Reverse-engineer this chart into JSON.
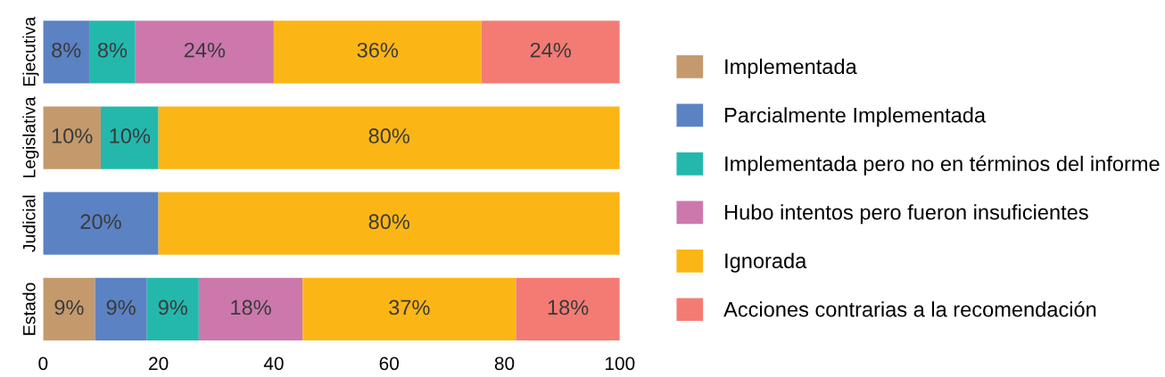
{
  "chart_data": {
    "type": "bar",
    "orientation": "horizontal",
    "stacked": true,
    "categories": [
      "Ejecutiva",
      "Legislativa",
      "Judicial",
      "Estado"
    ],
    "series": [
      {
        "name": "Implementada",
        "color": "#c49a6c",
        "values": [
          null,
          10,
          null,
          9
        ],
        "value_labels": [
          null,
          "10%",
          null,
          "9%"
        ]
      },
      {
        "name": "Parcialmente Implementada",
        "color": "#5b82c3",
        "values": [
          8,
          null,
          20,
          9
        ],
        "value_labels": [
          "8%",
          null,
          "20%",
          "9%"
        ]
      },
      {
        "name": "Implementada pero no en términos del informe",
        "color": "#24b8ad",
        "values": [
          8,
          10,
          null,
          9
        ],
        "value_labels": [
          "8%",
          "10%",
          null,
          "9%"
        ]
      },
      {
        "name": "Hubo intentos pero fueron insuficientes",
        "color": "#cc78ad",
        "values": [
          24,
          null,
          null,
          18
        ],
        "value_labels": [
          "24%",
          null,
          null,
          "18%"
        ]
      },
      {
        "name": "Ignorada",
        "color": "#fbb616",
        "values": [
          36,
          80,
          80,
          37
        ],
        "value_labels": [
          "36%",
          "80%",
          "80%",
          "37%"
        ]
      },
      {
        "name": "Acciones contrarias a la recomendación",
        "color": "#f37b74",
        "values": [
          24,
          null,
          null,
          18
        ],
        "value_labels": [
          "24%",
          null,
          null,
          "18%"
        ]
      }
    ],
    "xlim": [
      0,
      100
    ],
    "xticks": [
      0,
      20,
      40,
      60,
      80,
      100
    ],
    "grid": false,
    "legend": "right"
  }
}
